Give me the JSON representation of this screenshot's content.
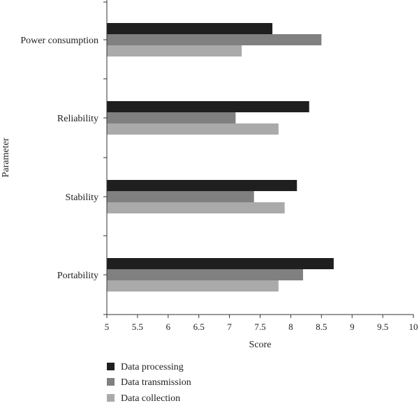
{
  "chart_data": {
    "type": "bar",
    "orientation": "horizontal",
    "categories": [
      "Power consumption",
      "Reliability",
      "Stability",
      "Portability"
    ],
    "series": [
      {
        "name": "Data processing",
        "color": "#1f1f1f",
        "values": [
          7.7,
          8.3,
          8.1,
          8.7
        ]
      },
      {
        "name": "Data transmission",
        "color": "#808080",
        "values": [
          8.5,
          7.1,
          7.4,
          8.2
        ]
      },
      {
        "name": "Data collection",
        "color": "#aaaaaa",
        "values": [
          7.2,
          7.8,
          7.9,
          7.8
        ]
      }
    ],
    "xlabel": "Score",
    "ylabel": "Parameter",
    "xlim": [
      5,
      10
    ],
    "xticks": [
      "5",
      "5.5",
      "6",
      "6.5",
      "7",
      "7.5",
      "8",
      "8.5",
      "9",
      "9.5",
      "10"
    ],
    "grid": false,
    "legend_position": "bottom-left"
  }
}
